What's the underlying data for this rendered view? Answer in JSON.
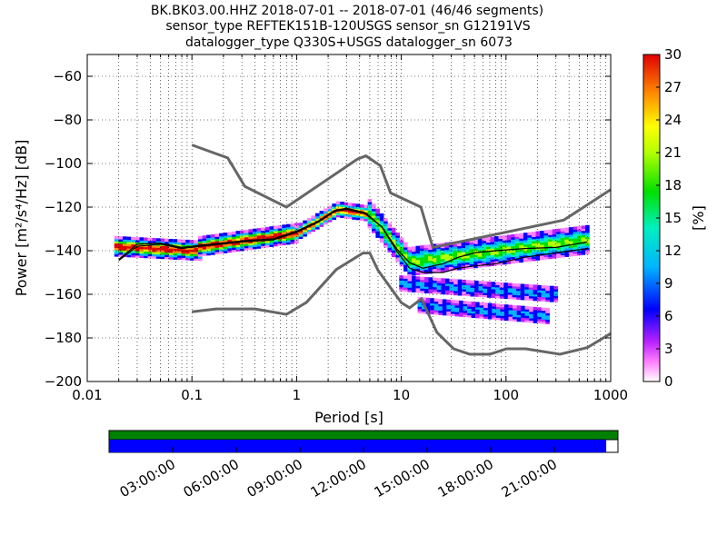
{
  "title_lines": [
    "BK.BK03.00.HHZ   2018-07-01 -- 2018-07-01  (46/46 segments)",
    "sensor_type REFTEK151B-120USGS sensor_sn G12191VS",
    "datalogger_type Q330S+USGS datalogger_sn 6073"
  ],
  "chart_data": {
    "type": "heatmap",
    "xlabel": "Period [s]",
    "ylabel": "Power [m²/s⁴/Hz] [dB]",
    "x_scale": "log",
    "xlim": [
      0.01,
      1000
    ],
    "ylim": [
      -200,
      -50
    ],
    "x_ticks": [
      0.01,
      0.1,
      1,
      10,
      100,
      1000
    ],
    "x_tick_labels": [
      "0.01",
      "0.1",
      "1",
      "10",
      "100",
      "1000"
    ],
    "y_ticks": [
      -200,
      -180,
      -160,
      -140,
      -120,
      -100,
      -80,
      -60
    ],
    "grid": "dotted",
    "colorbar": {
      "label": "[%]",
      "range": [
        0,
        30
      ],
      "ticks": [
        0,
        3,
        6,
        9,
        12,
        15,
        18,
        21,
        24,
        27,
        30
      ],
      "colormap": "pqlx"
    },
    "noise_models": [
      {
        "name": "NHNM",
        "points": [
          [
            0.1,
            -91.5
          ],
          [
            0.22,
            -97.4
          ],
          [
            0.32,
            -110.5
          ],
          [
            0.8,
            -120
          ],
          [
            3.8,
            -98
          ],
          [
            4.6,
            -96.5
          ],
          [
            6.3,
            -101
          ],
          [
            7.9,
            -113.5
          ],
          [
            15.4,
            -120
          ],
          [
            20,
            -138.5
          ],
          [
            354.8,
            -126
          ],
          [
            1000,
            -112
          ]
        ]
      },
      {
        "name": "NLNM",
        "points": [
          [
            0.1,
            -168
          ],
          [
            0.17,
            -166.7
          ],
          [
            0.4,
            -166.7
          ],
          [
            0.8,
            -169.2
          ],
          [
            1.24,
            -163.7
          ],
          [
            2.4,
            -148.6
          ],
          [
            4.3,
            -141.1
          ],
          [
            5,
            -141.1
          ],
          [
            6,
            -149
          ],
          [
            10,
            -163.8
          ],
          [
            12,
            -166.2
          ],
          [
            15.6,
            -162.1
          ],
          [
            21.9,
            -177.5
          ],
          [
            31.6,
            -185
          ],
          [
            45,
            -187.5
          ],
          [
            70,
            -187.5
          ],
          [
            101,
            -185
          ],
          [
            154,
            -185
          ],
          [
            328,
            -187.5
          ],
          [
            600,
            -184.4
          ],
          [
            1000,
            -178
          ]
        ]
      }
    ],
    "statistics": [
      {
        "name": "median",
        "points": [
          [
            0.02,
            -144.5
          ],
          [
            0.03,
            -138
          ],
          [
            0.05,
            -137
          ],
          [
            0.08,
            -139
          ],
          [
            0.12,
            -138
          ],
          [
            0.3,
            -136
          ],
          [
            0.6,
            -135
          ],
          [
            1,
            -131.5
          ],
          [
            1.6,
            -127
          ],
          [
            2.3,
            -122
          ],
          [
            3,
            -121
          ],
          [
            4.5,
            -123
          ],
          [
            6.5,
            -129
          ],
          [
            9,
            -139
          ],
          [
            12,
            -145.5
          ],
          [
            16,
            -148
          ],
          [
            25,
            -146
          ],
          [
            35,
            -143
          ],
          [
            50,
            -141
          ],
          [
            80,
            -140
          ],
          [
            150,
            -139
          ],
          [
            300,
            -138.5
          ],
          [
            600,
            -136
          ]
        ]
      },
      {
        "name": "mean",
        "points": [
          [
            0.02,
            -144
          ],
          [
            0.03,
            -137
          ],
          [
            0.05,
            -136.5
          ],
          [
            0.08,
            -138.5
          ],
          [
            0.12,
            -137.5
          ],
          [
            0.3,
            -135.5
          ],
          [
            0.6,
            -134.5
          ],
          [
            1,
            -131
          ],
          [
            1.6,
            -126.5
          ],
          [
            2.3,
            -121.5
          ],
          [
            3,
            -120.5
          ],
          [
            4.5,
            -122.5
          ],
          [
            6.5,
            -129
          ],
          [
            9,
            -140
          ],
          [
            12,
            -148
          ],
          [
            16,
            -150
          ],
          [
            25,
            -150
          ],
          [
            35,
            -148
          ],
          [
            50,
            -147
          ],
          [
            80,
            -146
          ],
          [
            150,
            -143
          ],
          [
            300,
            -141
          ],
          [
            600,
            -139
          ]
        ]
      }
    ],
    "density_bands": [
      {
        "x": [
          0.019,
          0.12
        ],
        "y_center": [
          -138,
          -140
        ],
        "spread": 4
      },
      {
        "x": [
          0.12,
          1.0
        ],
        "y_center": [
          -138,
          -132
        ],
        "spread": 4
      },
      {
        "x": [
          1.0,
          2.5
        ],
        "y_center": [
          -132,
          -121
        ],
        "spread": 3
      },
      {
        "x": [
          2.5,
          5.0
        ],
        "y_center": [
          -121,
          -123
        ],
        "spread": 3
      },
      {
        "x": [
          5.0,
          12.0
        ],
        "y_center": [
          -123,
          -145
        ],
        "spread": 6
      },
      {
        "x": [
          12.0,
          600
        ],
        "y_center": [
          -145,
          -135
        ],
        "spread": 6
      },
      {
        "x": [
          10.0,
          300
        ],
        "y_center": [
          -155,
          -160
        ],
        "spread": 4
      },
      {
        "x": [
          15.0,
          250
        ],
        "y_center": [
          -165,
          -170
        ],
        "spread": 4
      }
    ]
  },
  "time_bar": {
    "tick_labels": [
      "03:00:00",
      "06:00:00",
      "09:00:00",
      "12:00:00",
      "15:00:00",
      "18:00:00",
      "21:00:00"
    ],
    "data_color": "#008000",
    "gap_color": "#0000ff",
    "coverage_fraction": 0.977
  }
}
